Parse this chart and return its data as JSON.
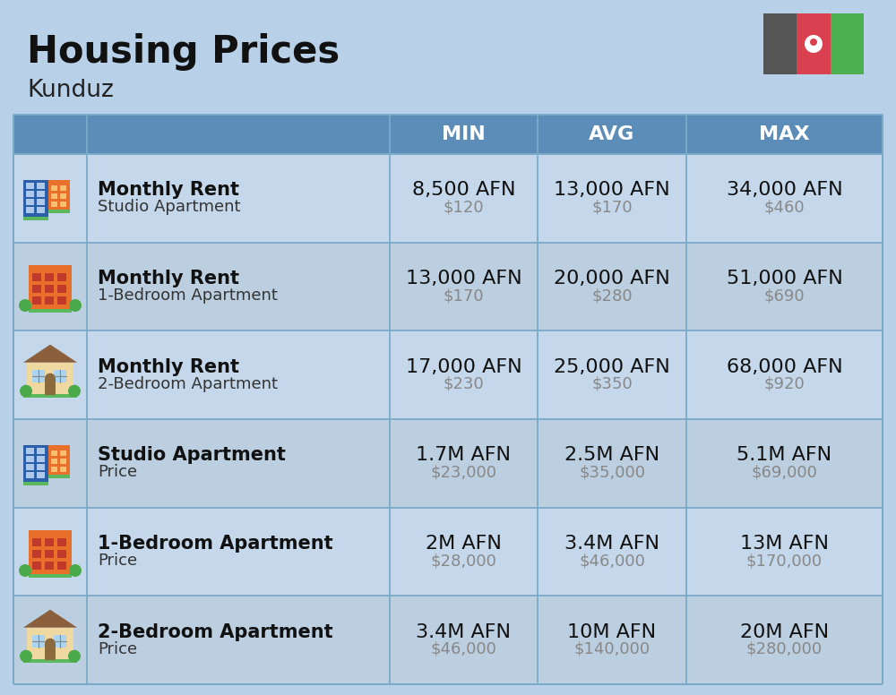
{
  "title": "Housing Prices",
  "subtitle": "Kunduz",
  "bg_color": "#b8d0e8",
  "header_bg": "#5b8db8",
  "header_text_color": "#ffffff",
  "row_bg_even": "#c5d8eb",
  "row_bg_odd": "#bccfe0",
  "header_labels": [
    "MIN",
    "AVG",
    "MAX"
  ],
  "rows": [
    {
      "bold_label": "Monthly Rent",
      "sub_label": "Studio Apartment",
      "min_afn": "8,500 AFN",
      "min_usd": "$120",
      "avg_afn": "13,000 AFN",
      "avg_usd": "$170",
      "max_afn": "34,000 AFN",
      "max_usd": "$460",
      "icon_type": "blue_orange"
    },
    {
      "bold_label": "Monthly Rent",
      "sub_label": "1-Bedroom Apartment",
      "min_afn": "13,000 AFN",
      "min_usd": "$170",
      "avg_afn": "20,000 AFN",
      "avg_usd": "$280",
      "max_afn": "51,000 AFN",
      "max_usd": "$690",
      "icon_type": "orange_tall"
    },
    {
      "bold_label": "Monthly Rent",
      "sub_label": "2-Bedroom Apartment",
      "min_afn": "17,000 AFN",
      "min_usd": "$230",
      "avg_afn": "25,000 AFN",
      "avg_usd": "$350",
      "max_afn": "68,000 AFN",
      "max_usd": "$920",
      "icon_type": "beige_house"
    },
    {
      "bold_label": "Studio Apartment",
      "sub_label": "Price",
      "min_afn": "1.7M AFN",
      "min_usd": "$23,000",
      "avg_afn": "2.5M AFN",
      "avg_usd": "$35,000",
      "max_afn": "5.1M AFN",
      "max_usd": "$69,000",
      "icon_type": "blue_orange"
    },
    {
      "bold_label": "1-Bedroom Apartment",
      "sub_label": "Price",
      "min_afn": "2M AFN",
      "min_usd": "$28,000",
      "avg_afn": "3.4M AFN",
      "avg_usd": "$46,000",
      "max_afn": "13M AFN",
      "max_usd": "$170,000",
      "icon_type": "orange_tall"
    },
    {
      "bold_label": "2-Bedroom Apartment",
      "sub_label": "Price",
      "min_afn": "3.4M AFN",
      "min_usd": "$46,000",
      "avg_afn": "10M AFN",
      "avg_usd": "$140,000",
      "max_afn": "20M AFN",
      "max_usd": "$280,000",
      "icon_type": "beige_house"
    }
  ],
  "flag_dark": "#555555",
  "flag_red": "#d94050",
  "flag_green": "#4caf50",
  "title_fontsize": 30,
  "subtitle_fontsize": 19,
  "header_fontsize": 16,
  "cell_afn_fontsize": 16,
  "cell_usd_fontsize": 13,
  "label_bold_fontsize": 15,
  "label_sub_fontsize": 13
}
